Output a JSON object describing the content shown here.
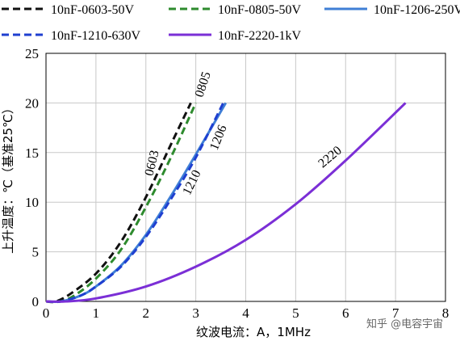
{
  "chart_data": {
    "type": "line",
    "xlabel": "纹波电流：A，1MHz",
    "ylabel": "上升温度：℃（基准25℃）",
    "xlim": [
      0,
      8
    ],
    "ylim": [
      0,
      25
    ],
    "xticks": [
      "0",
      "1",
      "2",
      "3",
      "4",
      "5",
      "6",
      "7",
      "8"
    ],
    "yticks": [
      "0",
      "5",
      "10",
      "15",
      "20",
      "25"
    ],
    "grid": true,
    "legend": "top",
    "series": [
      {
        "name": "10nF-0603-50V",
        "label": "0603",
        "color": "#111111",
        "dash": true,
        "x": [
          0.2,
          0.5,
          1.0,
          1.5,
          2.0,
          2.5,
          2.9
        ],
        "y": [
          0,
          0.8,
          2.8,
          6.0,
          10.5,
          15.8,
          20
        ]
      },
      {
        "name": "10nF-0805-50V",
        "label": "0805",
        "color": "#2e8b2e",
        "dash": true,
        "x": [
          0.3,
          0.6,
          1.0,
          1.5,
          2.0,
          2.5,
          3.0
        ],
        "y": [
          0,
          0.7,
          2.3,
          5.2,
          9.5,
          14.5,
          20
        ]
      },
      {
        "name": "10nF-1206-250V",
        "label": "1206",
        "color": "#3f7fd6",
        "dash": false,
        "x": [
          0.3,
          0.7,
          1.0,
          1.5,
          2.0,
          2.5,
          3.0,
          3.6
        ],
        "y": [
          0,
          0.6,
          1.5,
          3.6,
          6.7,
          10.6,
          14.8,
          20
        ]
      },
      {
        "name": "10nF-1210-630V",
        "label": "1210",
        "color": "#1f3fd0",
        "dash": true,
        "x": [
          0.3,
          0.7,
          1.0,
          1.5,
          2.0,
          2.5,
          3.0,
          3.55
        ],
        "y": [
          0,
          0.6,
          1.5,
          3.5,
          6.5,
          10.3,
          14.5,
          20
        ]
      },
      {
        "name": "10nF-2220-1kV",
        "label": "2220",
        "color": "#7b2fd6",
        "dash": false,
        "x": [
          0.4,
          1.0,
          2.0,
          3.0,
          4.0,
          5.0,
          6.0,
          7.2
        ],
        "y": [
          0,
          0.3,
          1.5,
          3.5,
          6.2,
          9.8,
          14.2,
          20
        ]
      }
    ]
  },
  "watermark": "知乎 @电容宇宙"
}
